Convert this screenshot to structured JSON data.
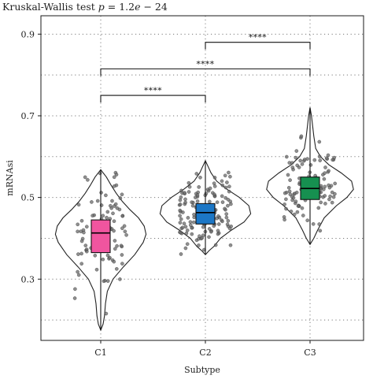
{
  "chart_data": {
    "type": "violin",
    "title_parts": {
      "prefix": "Kruskal-Wallis test ",
      "p_symbol": "p",
      "equals": " = 1.2",
      "e_symbol": "e",
      "suffix": " − 24"
    },
    "xlabel": "Subtype",
    "ylabel": "mRNAsi",
    "categories": [
      "C1",
      "C2",
      "C3"
    ],
    "ylim": [
      0.15,
      0.945
    ],
    "yticks": [
      0.3,
      0.5,
      0.7,
      0.9
    ],
    "ytick_labels": [
      "0.3",
      "0.5",
      "0.7",
      "0.9"
    ],
    "y_minor_grid": [
      0.2,
      0.4,
      0.6,
      0.8
    ],
    "grid": true,
    "groups": [
      {
        "category": "C1",
        "color": "#f0559f",
        "min": 0.175,
        "q1": 0.365,
        "median": 0.413,
        "q3": 0.445,
        "max": 0.568
      },
      {
        "category": "C2",
        "color": "#1c77c6",
        "min": 0.36,
        "q1": 0.435,
        "median": 0.463,
        "q3": 0.485,
        "max": 0.59
      },
      {
        "category": "C3",
        "color": "#169050",
        "min": 0.385,
        "q1": 0.495,
        "median": 0.522,
        "q3": 0.55,
        "max": 0.72
      }
    ],
    "comparisons": [
      {
        "from": "C1",
        "to": "C2",
        "y": 0.75,
        "label": "****"
      },
      {
        "from": "C1",
        "to": "C3",
        "y": 0.815,
        "label": "****"
      },
      {
        "from": "C2",
        "to": "C3",
        "y": 0.88,
        "label": "****"
      }
    ]
  }
}
